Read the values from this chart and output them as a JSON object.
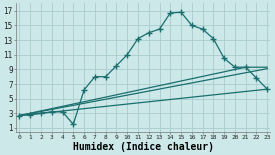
{
  "bg_color": "#cce8e8",
  "grid_color": "#aacccc",
  "line_color": "#1a6e6e",
  "marker": "+",
  "markersize": 4,
  "linewidth": 0.9,
  "xlabel": "Humidex (Indice chaleur)",
  "xlabel_fontsize": 7,
  "ytick_labels": [
    "1",
    "3",
    "5",
    "7",
    "9",
    "11",
    "13",
    "15",
    "17"
  ],
  "ytick_values": [
    1,
    3,
    5,
    7,
    9,
    11,
    13,
    15,
    17
  ],
  "xtick_values": [
    0,
    1,
    2,
    3,
    4,
    5,
    6,
    7,
    8,
    9,
    10,
    11,
    12,
    13,
    14,
    15,
    16,
    17,
    18,
    19,
    20,
    21,
    22,
    23
  ],
  "xlim": [
    -0.3,
    23.3
  ],
  "ylim": [
    0.5,
    18.0
  ],
  "curve1_x": [
    0,
    1,
    2,
    3,
    4,
    5,
    6,
    7,
    8,
    9,
    10,
    11,
    12,
    13,
    14,
    15,
    16,
    17,
    18,
    19,
    20,
    21,
    22,
    23
  ],
  "curve1_y": [
    2.7,
    2.8,
    3.0,
    3.2,
    3.2,
    1.5,
    6.2,
    8.0,
    8.0,
    9.5,
    11.0,
    13.2,
    14.0,
    14.5,
    16.7,
    16.8,
    15.0,
    14.5,
    13.2,
    10.5,
    9.3,
    9.3,
    7.8,
    6.3
  ],
  "line2_x": [
    0,
    21,
    23
  ],
  "line2_y": [
    2.7,
    9.3,
    9.3
  ],
  "line3_x": [
    0,
    23
  ],
  "line3_y": [
    2.7,
    9.1
  ],
  "line4_x": [
    0,
    23
  ],
  "line4_y": [
    2.7,
    6.3
  ]
}
